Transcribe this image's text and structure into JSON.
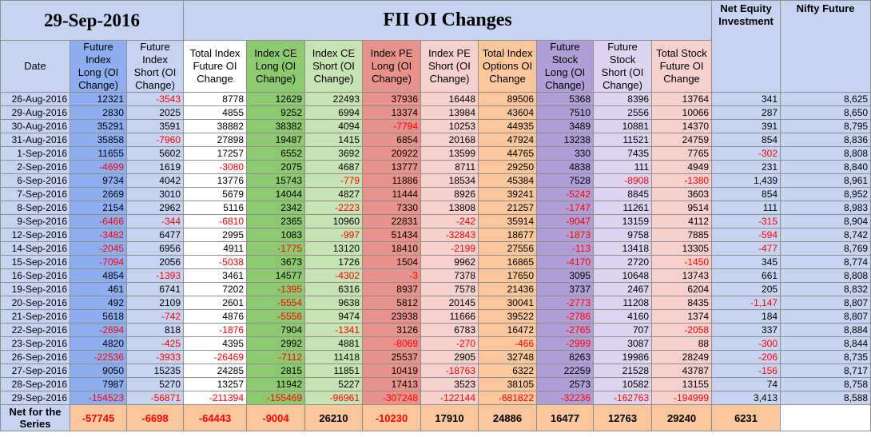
{
  "title": {
    "date": "29-Sep-2016",
    "heading": "FII OI Changes"
  },
  "headers": {
    "date": "Date",
    "columns": [
      "Future Index Long (OI Change)",
      "Future Index Short (OI Change)",
      "Total Index Future OI Change",
      "Index CE Long (OI Change)",
      "Index CE Short (OI Change)",
      "Index PE Long (OI Change)",
      "Index PE Short (OI Change)",
      "Total Index Options OI Change",
      "Future Stock Long (OI Change)",
      "Future Stock Short (OI Change)",
      "Total Stock Future OI Change"
    ],
    "net_equity": "Net Equity Investment",
    "nifty": "Nifty Future"
  },
  "rows": [
    {
      "date": "26-Aug-2016",
      "values": [
        "12321",
        "-3543",
        "8778",
        "12629",
        "22493",
        "37936",
        "16448",
        "89506",
        "5368",
        "8396",
        "13764",
        "341",
        "8,625"
      ]
    },
    {
      "date": "29-Aug-2016",
      "values": [
        "2830",
        "2025",
        "4855",
        "9252",
        "6994",
        "13374",
        "13984",
        "43604",
        "7510",
        "2556",
        "10066",
        "287",
        "8,650"
      ]
    },
    {
      "date": "30-Aug-2016",
      "values": [
        "35291",
        "3591",
        "38882",
        "38382",
        "4094",
        "-7794",
        "10253",
        "44935",
        "3489",
        "10881",
        "14370",
        "391",
        "8,795"
      ]
    },
    {
      "date": "31-Aug-2016",
      "values": [
        "35858",
        "-7960",
        "27898",
        "19487",
        "1415",
        "6854",
        "20168",
        "47924",
        "13238",
        "11521",
        "24759",
        "854",
        "8,836"
      ]
    },
    {
      "date": "1-Sep-2016",
      "values": [
        "11655",
        "5602",
        "17257",
        "6552",
        "3692",
        "20922",
        "13599",
        "44765",
        "330",
        "7435",
        "7765",
        "-302",
        "8,808"
      ]
    },
    {
      "date": "2-Sep-2016",
      "values": [
        "-4699",
        "1619",
        "-3080",
        "2075",
        "4687",
        "13777",
        "8711",
        "29250",
        "4838",
        "111",
        "4949",
        "231",
        "8,840"
      ]
    },
    {
      "date": "6-Sep-2016",
      "values": [
        "9734",
        "4042",
        "13776",
        "15743",
        "-779",
        "11886",
        "18534",
        "45384",
        "7528",
        "-8908",
        "-1380",
        "1,439",
        "8,961"
      ]
    },
    {
      "date": "7-Sep-2016",
      "values": [
        "2669",
        "3010",
        "5679",
        "14044",
        "4827",
        "11444",
        "8926",
        "39241",
        "-5242",
        "8845",
        "3603",
        "854",
        "8,952"
      ]
    },
    {
      "date": "8-Sep-2016",
      "values": [
        "2154",
        "2962",
        "5116",
        "2342",
        "-2223",
        "7330",
        "13808",
        "21257",
        "-1747",
        "11261",
        "9514",
        "111",
        "8,983"
      ]
    },
    {
      "date": "9-Sep-2016",
      "values": [
        "-6466",
        "-344",
        "-6810",
        "2365",
        "10960",
        "22831",
        "-242",
        "35914",
        "-9047",
        "13159",
        "4112",
        "-315",
        "8,904"
      ]
    },
    {
      "date": "12-Sep-2016",
      "values": [
        "-3482",
        "6477",
        "2995",
        "1083",
        "-997",
        "51434",
        "-32843",
        "18677",
        "-1873",
        "9758",
        "7885",
        "-594",
        "8,742"
      ]
    },
    {
      "date": "14-Sep-2016",
      "values": [
        "-2045",
        "6956",
        "4911",
        "-1775",
        "13120",
        "18410",
        "-2199",
        "27556",
        "-113",
        "13418",
        "13305",
        "-477",
        "8,769"
      ]
    },
    {
      "date": "15-Sep-2016",
      "values": [
        "-7094",
        "2056",
        "-5038",
        "3673",
        "1726",
        "1504",
        "9962",
        "16865",
        "-4170",
        "2720",
        "-1450",
        "345",
        "8,774"
      ]
    },
    {
      "date": "16-Sep-2016",
      "values": [
        "4854",
        "-1393",
        "3461",
        "14577",
        "-4302",
        "-3",
        "7378",
        "17650",
        "3095",
        "10648",
        "13743",
        "661",
        "8,808"
      ]
    },
    {
      "date": "19-Sep-2016",
      "values": [
        "461",
        "6741",
        "7202",
        "-1395",
        "6316",
        "8937",
        "7578",
        "21436",
        "3737",
        "2467",
        "6204",
        "205",
        "8,832"
      ]
    },
    {
      "date": "20-Sep-2016",
      "values": [
        "492",
        "2109",
        "2601",
        "-5554",
        "9638",
        "5812",
        "20145",
        "30041",
        "-2773",
        "11208",
        "8435",
        "-1,147",
        "8,807"
      ]
    },
    {
      "date": "21-Sep-2016",
      "values": [
        "5618",
        "-742",
        "4876",
        "-5556",
        "9474",
        "23938",
        "11666",
        "39522",
        "-2786",
        "4160",
        "1374",
        "184",
        "8,807"
      ]
    },
    {
      "date": "22-Sep-2016",
      "values": [
        "-2694",
        "818",
        "-1876",
        "7904",
        "-1341",
        "3126",
        "6783",
        "16472",
        "-2765",
        "707",
        "-2058",
        "337",
        "8,884"
      ]
    },
    {
      "date": "23-Sep-2016",
      "values": [
        "4820",
        "-425",
        "4395",
        "2992",
        "4881",
        "-8069",
        "-270",
        "-466",
        "-2999",
        "3087",
        "88",
        "-300",
        "8,844"
      ]
    },
    {
      "date": "26-Sep-2016",
      "values": [
        "-22536",
        "-3933",
        "-26469",
        "-7112",
        "11418",
        "25537",
        "2905",
        "32748",
        "8263",
        "19986",
        "28249",
        "-206",
        "8,735"
      ]
    },
    {
      "date": "27-Sep-2016",
      "values": [
        "9050",
        "15235",
        "24285",
        "2815",
        "11851",
        "10419",
        "-18763",
        "6322",
        "22259",
        "21528",
        "43787",
        "-156",
        "8,717"
      ]
    },
    {
      "date": "28-Sep-2016",
      "values": [
        "7987",
        "5270",
        "13257",
        "11942",
        "5227",
        "17413",
        "3523",
        "38105",
        "2573",
        "10582",
        "13155",
        "74",
        "8,758"
      ]
    },
    {
      "date": "29-Sep-2016",
      "values": [
        "-154523",
        "-56871",
        "-211394",
        "-155469",
        "-96961",
        "-307248",
        "-122144",
        "-681822",
        "-32236",
        "-162763",
        "-194999",
        "3,413",
        "8,588"
      ]
    }
  ],
  "net": {
    "label": "Net for the Series",
    "values": [
      "-57745",
      "-6698",
      "-64443",
      "-9004",
      "26210",
      "-10230",
      "17910",
      "24886",
      "16477",
      "12763",
      "29240",
      "6231",
      ""
    ]
  },
  "colors": {
    "header_blue": "#c6d4f2",
    "future_long_blue": "#8eaef2",
    "ce_long_green": "#8cc96f",
    "ce_short_green": "#c7e3b4",
    "pe_long_red": "#e8928c",
    "pe_short_pink": "#f6d0cc",
    "options_orange": "#f9c79b",
    "stock_long_purple": "#b09fd6",
    "stock_short_lavender": "#dcd3ef",
    "negative_text": "#ff0000"
  }
}
